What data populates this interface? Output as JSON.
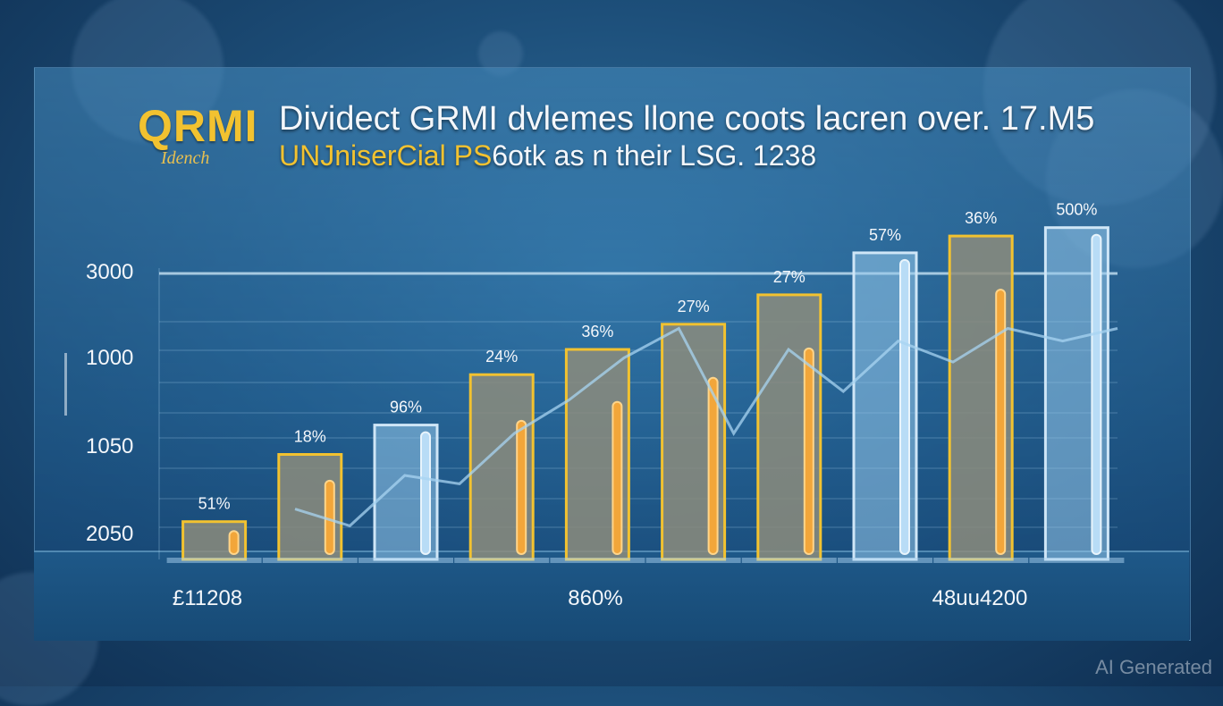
{
  "header": {
    "logo": "QRMI",
    "logo_sub": "Idench",
    "title": "Dividect GRMI dvlemes llone coots lacren over. 17.M5",
    "subtitle_a": "UNJniserCial PS",
    "subtitle_b": "6otk as n their LSG. 1238"
  },
  "watermark": "AI Generated",
  "colors": {
    "gold": "#f2c230",
    "bar_fill": "#8a8f84",
    "bar_blue": "#9cc8ec",
    "line": "#a8d4f2"
  },
  "chart_data": {
    "type": "bar",
    "y_ticks": [
      "3000",
      "1000",
      "1050",
      "2050"
    ],
    "ylabel": "",
    "x_tick_labels": [
      "£11208",
      "860%",
      "48uu4200"
    ],
    "bars": [
      {
        "label": "51%",
        "value": 9,
        "style": "gold"
      },
      {
        "label": "18%",
        "value": 25,
        "style": "gold"
      },
      {
        "label": "96%",
        "value": 32,
        "style": "blue"
      },
      {
        "label": "24%",
        "value": 44,
        "style": "gold"
      },
      {
        "label": "36%",
        "value": 50,
        "style": "gold"
      },
      {
        "label": "27%",
        "value": 56,
        "style": "gold"
      },
      {
        "label": "27%",
        "value": 63,
        "style": "gold"
      },
      {
        "label": "57%",
        "value": 73,
        "style": "blue"
      },
      {
        "label": "36%",
        "value": 77,
        "style": "gold"
      },
      {
        "label": "500%",
        "value": 79,
        "style": "blue"
      }
    ],
    "trend_line": [
      12,
      8,
      20,
      18,
      30,
      38,
      48,
      55,
      30,
      50,
      40,
      52,
      47,
      55,
      52,
      55
    ],
    "grid": true
  }
}
